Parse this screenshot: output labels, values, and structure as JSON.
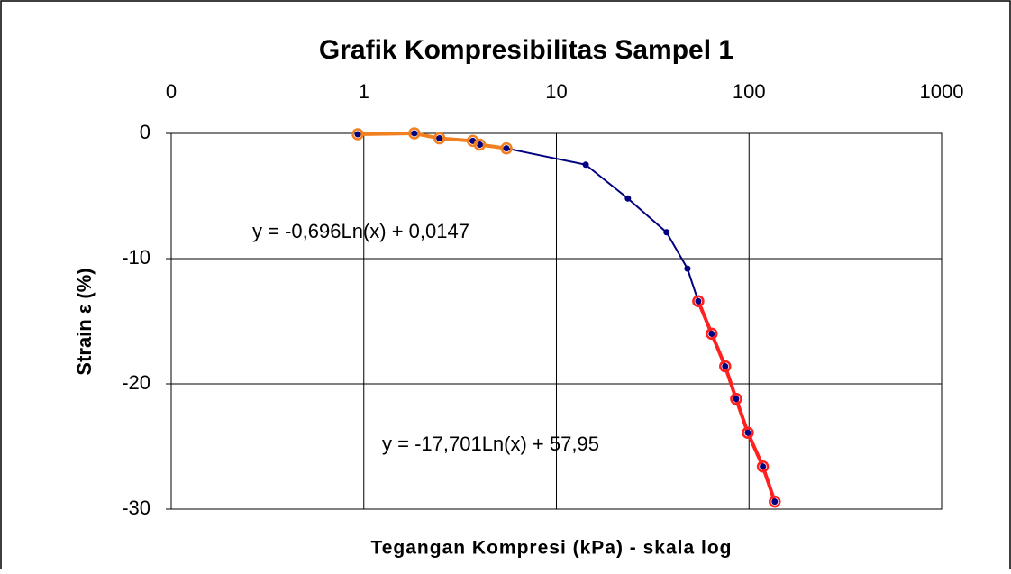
{
  "chart_data": {
    "type": "scatter",
    "title": "Grafik Kompresibilitas Sampel 1",
    "x_label": "Tegangan Kompresi (kPa) - skala log",
    "y_label": "Strain ε (%)",
    "annotations": [
      "y = -0,696Ln(x) + 0,0147",
      "y = -17,701Ln(x) + 57,95"
    ],
    "x_log": true,
    "xlim": [
      0.1,
      1000
    ],
    "xticks": [
      {
        "value": 0.1,
        "label": "0"
      },
      1,
      10,
      100,
      1000
    ],
    "ylim": [
      -30,
      0
    ],
    "yticks": [
      0,
      -10,
      -20,
      -30
    ],
    "grid": true,
    "series": [
      {
        "color": "#000080",
        "marker": "dot",
        "x": [
          0.93,
          1.83,
          2.47,
          3.68,
          4.0,
          5.5,
          14.2,
          23.5,
          37.3,
          47.9,
          54.5,
          64,
          75.2,
          85.7,
          98.6,
          118,
          136
        ],
        "values": [
          -0.07,
          0,
          -0.4,
          -0.6,
          -0.9,
          -1.2,
          -2.5,
          -5.2,
          -7.9,
          -10.8,
          -13.4,
          -16,
          -18.6,
          -21.2,
          -23.9,
          -26.6,
          -29.4
        ]
      },
      {
        "color": "#f08020",
        "marker": "ring",
        "x": [
          0.93,
          1.83,
          2.47,
          3.68,
          4.0,
          5.5
        ],
        "values": [
          -0.07,
          0,
          -0.4,
          -0.6,
          -0.9,
          -1.2
        ]
      },
      {
        "color": "#ff2020",
        "marker": "ring",
        "x": [
          54.5,
          64,
          75.2,
          85.7,
          98.6,
          118,
          136
        ],
        "values": [
          -13.4,
          -16,
          -18.6,
          -21.2,
          -23.9,
          -26.6,
          -29.4
        ]
      }
    ]
  }
}
